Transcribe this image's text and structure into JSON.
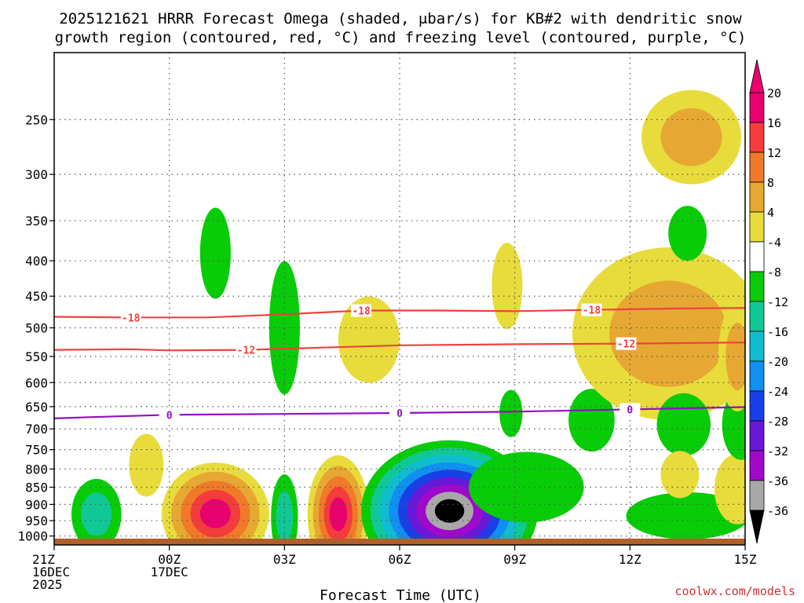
{
  "chart_data": {
    "type": "heatmap",
    "title_line1": "2025121621 HRRR Forecast Omega (shaded, μbar/s) for KB#2 with dendritic snow",
    "title_line2": "growth region (contoured, red, °C) and freezing level (contoured, purple, °C)",
    "xlabel": "Forecast Time (UTC)",
    "credit": "coolwx.com/models",
    "x_range_hours": [
      0,
      18
    ],
    "y_range_hpa": [
      1030,
      200
    ],
    "x_ticks": [
      {
        "hour": 0,
        "lines": [
          "21Z",
          "16DEC",
          "2025"
        ]
      },
      {
        "hour": 3,
        "lines": [
          "00Z",
          "17DEC"
        ]
      },
      {
        "hour": 6,
        "lines": [
          "03Z"
        ]
      },
      {
        "hour": 9,
        "lines": [
          "06Z"
        ]
      },
      {
        "hour": 12,
        "lines": [
          "09Z"
        ]
      },
      {
        "hour": 15,
        "lines": [
          "12Z"
        ]
      },
      {
        "hour": 18,
        "lines": [
          "15Z"
        ]
      }
    ],
    "y_ticks": [
      250,
      300,
      350,
      400,
      450,
      500,
      550,
      600,
      650,
      700,
      750,
      800,
      850,
      900,
      950,
      1000
    ],
    "colorbar": {
      "min_label": "-36",
      "max_label": "20",
      "levels": [
        {
          "label": "20",
          "color": "#e8006e"
        },
        {
          "label": "16",
          "color": "#f43c3c"
        },
        {
          "label": "12",
          "color": "#f07a28"
        },
        {
          "label": "8",
          "color": "#e6a832"
        },
        {
          "label": "4",
          "color": "#e8dc3c"
        },
        {
          "label": "-4",
          "color": "#ffffff"
        },
        {
          "label": "-8",
          "color": "#08cc08"
        },
        {
          "label": "-12",
          "color": "#10c896"
        },
        {
          "label": "-16",
          "color": "#10bcd0"
        },
        {
          "label": "-20",
          "color": "#1090f0"
        },
        {
          "label": "-24",
          "color": "#1840e8"
        },
        {
          "label": "-28",
          "color": "#6818d8"
        },
        {
          "label": "-32",
          "color": "#a008cc"
        },
        {
          "label": "-36",
          "color": "#a8a8a8"
        }
      ],
      "below_min_color": "#000000"
    },
    "contours": [
      {
        "name": "dgz-minus-18",
        "color": "#f04040",
        "label": "-18",
        "points": [
          [
            0,
            482
          ],
          [
            2,
            483
          ],
          [
            4,
            483
          ],
          [
            6,
            478
          ],
          [
            8,
            472
          ],
          [
            10,
            472
          ],
          [
            12,
            473
          ],
          [
            14,
            471
          ],
          [
            16,
            469
          ],
          [
            18,
            468
          ]
        ],
        "label_hours": [
          2,
          8,
          14
        ]
      },
      {
        "name": "dgz-minus-12",
        "color": "#f04040",
        "label": "-12",
        "points": [
          [
            0,
            538
          ],
          [
            2,
            537
          ],
          [
            3,
            539
          ],
          [
            5,
            538
          ],
          [
            7,
            534
          ],
          [
            9,
            530
          ],
          [
            12,
            528
          ],
          [
            15,
            527
          ],
          [
            18,
            525
          ]
        ],
        "label_hours": [
          5,
          14.9
        ]
      },
      {
        "name": "freezing-level-0",
        "color": "#9010c0",
        "label": "0",
        "points": [
          [
            0,
            676
          ],
          [
            1,
            673
          ],
          [
            3,
            668
          ],
          [
            6,
            666
          ],
          [
            9,
            664
          ],
          [
            12,
            661
          ],
          [
            15,
            656
          ],
          [
            18,
            651
          ]
        ],
        "label_hours": [
          3,
          9,
          15
        ]
      }
    ],
    "omega_regions": [
      {
        "hour": 1.1,
        "hpa": 930,
        "rh": 0.65,
        "rp": 45,
        "levels": [
          "#08cc08",
          "#10c896"
        ]
      },
      {
        "hour": 2.4,
        "hpa": 790,
        "rh": 0.45,
        "rp": 40,
        "levels": [
          "#e8dc3c"
        ]
      },
      {
        "hour": 4.2,
        "hpa": 928,
        "rh": 1.4,
        "rp": 65,
        "levels": [
          "#e8dc3c",
          "#e6a832",
          "#f07a28",
          "#f43c3c",
          "#e8006e"
        ]
      },
      {
        "hour": 4.2,
        "hpa": 390,
        "rh": 0.4,
        "rp": 58,
        "levels": [
          "#08cc08"
        ]
      },
      {
        "hour": 6.0,
        "hpa": 500,
        "rh": 0.4,
        "rp": 85,
        "levels": [
          "#08cc08"
        ]
      },
      {
        "hour": 6.0,
        "hpa": 940,
        "rh": 0.35,
        "rp": 55,
        "levels": [
          "#08cc08",
          "#10c896"
        ]
      },
      {
        "hour": 7.4,
        "hpa": 930,
        "rh": 0.8,
        "rp": 75,
        "levels": [
          "#e8dc3c",
          "#e6a832",
          "#f07a28",
          "#f43c3c",
          "#e8006e"
        ]
      },
      {
        "hour": 8.2,
        "hpa": 520,
        "rh": 0.8,
        "rp": 55,
        "levels": [
          "#e8dc3c"
        ]
      },
      {
        "hour": 10.3,
        "hpa": 920,
        "rh": 2.3,
        "rp": 90,
        "levels": [
          "#08cc08",
          "#10c896",
          "#10bcd0",
          "#1090f0",
          "#1840e8",
          "#6818d8",
          "#a008cc",
          "#a8a8a8",
          "#000000"
        ]
      },
      {
        "hour": 12.3,
        "hpa": 850,
        "rh": 1.5,
        "rp": 45,
        "levels": [
          "#08cc08"
        ]
      },
      {
        "hour": 11.8,
        "hpa": 435,
        "rh": 0.4,
        "rp": 55,
        "levels": [
          "#e8dc3c"
        ]
      },
      {
        "hour": 11.9,
        "hpa": 665,
        "rh": 0.3,
        "rp": 30,
        "levels": [
          "#08cc08"
        ]
      },
      {
        "hour": 14.0,
        "hpa": 680,
        "rh": 0.6,
        "rp": 40,
        "levels": [
          "#08cc08"
        ]
      },
      {
        "hour": 16.0,
        "hpa": 510,
        "rh": 2.5,
        "rp": 110,
        "levels": [
          "#e8dc3c",
          "#e6a832"
        ]
      },
      {
        "hour": 16.6,
        "hpa": 265,
        "rh": 1.3,
        "rp": 60,
        "levels": [
          "#e8dc3c",
          "#e6a832"
        ]
      },
      {
        "hour": 16.5,
        "hpa": 365,
        "rh": 0.5,
        "rp": 35,
        "levels": [
          "#08cc08"
        ]
      },
      {
        "hour": 16.5,
        "hpa": 935,
        "rh": 1.6,
        "rp": 30,
        "levels": [
          "#08cc08"
        ]
      },
      {
        "hour": 16.4,
        "hpa": 690,
        "rh": 0.7,
        "rp": 40,
        "levels": [
          "#08cc08"
        ]
      },
      {
        "hour": 16.3,
        "hpa": 815,
        "rh": 0.5,
        "rp": 30,
        "levels": [
          "#e8dc3c"
        ]
      },
      {
        "hour": 17.8,
        "hpa": 855,
        "rh": 0.6,
        "rp": 45,
        "levels": [
          "#e8dc3c"
        ]
      },
      {
        "hour": 17.9,
        "hpa": 690,
        "rh": 0.5,
        "rp": 45,
        "levels": [
          "#08cc08"
        ]
      },
      {
        "hour": 17.8,
        "hpa": 550,
        "rh": 0.5,
        "rp": 70,
        "levels": [
          "#e8dc3c",
          "#e6a832"
        ]
      }
    ],
    "ground_color": "#b0602a"
  }
}
